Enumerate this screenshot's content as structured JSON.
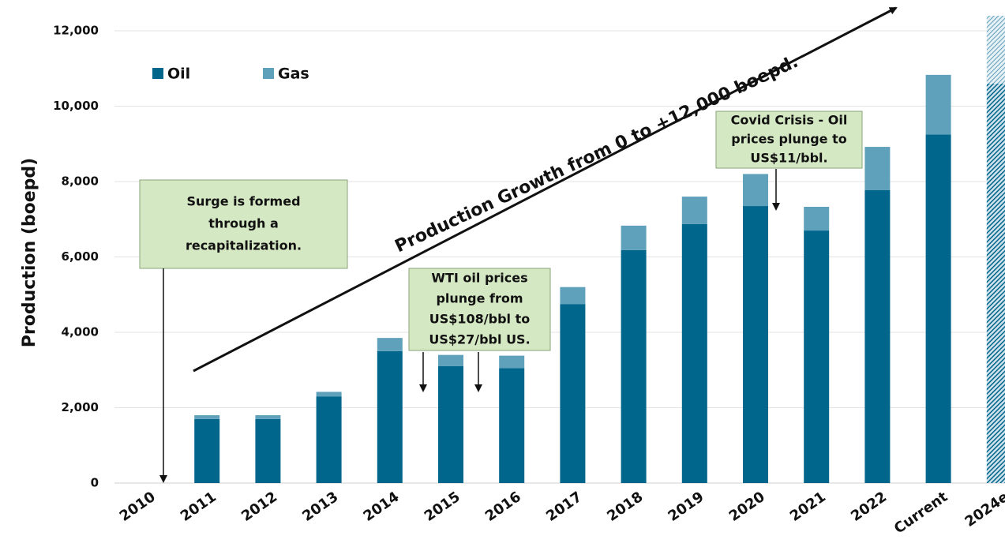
{
  "chart_data": {
    "type": "stacked_bar",
    "y_label": "Production (boepd)",
    "categories": [
      "2010",
      "2011",
      "2012",
      "2013",
      "2014",
      "2015",
      "2016",
      "2017",
      "2018",
      "2019",
      "2020",
      "2021",
      "2022",
      "Current",
      "2024e"
    ],
    "series": [
      {
        "name": "Oil",
        "color": "#00668c",
        "values": [
          0,
          1700,
          1700,
          2300,
          3500,
          3100,
          3050,
          4750,
          6180,
          6870,
          7350,
          6700,
          7770,
          9250,
          10600
        ]
      },
      {
        "name": "Gas",
        "color": "#5fa0bb",
        "values": [
          0,
          100,
          100,
          120,
          350,
          300,
          330,
          450,
          650,
          730,
          850,
          630,
          1150,
          1580,
          1800
        ]
      }
    ],
    "hatched": [
      false,
      false,
      false,
      false,
      false,
      false,
      false,
      false,
      false,
      false,
      false,
      false,
      false,
      false,
      true
    ],
    "ylim": [
      0,
      12000
    ],
    "yticks": [
      0,
      {
        "value": 2000,
        "label": "2,000"
      },
      {
        "value": 4000,
        "label": "4,000"
      },
      {
        "value": 6000,
        "label": "6,000"
      },
      {
        "value": 8000,
        "label": "8,000"
      },
      {
        "value": 10000,
        "label": "10,000"
      },
      {
        "value": 12000,
        "label": "12,000"
      }
    ],
    "grid": true,
    "growth_annotation": "Production Growth from 0 to +12,000 boepd.",
    "annotations": [
      {
        "lines": [
          "Surge is formed",
          "through a",
          "recapitalization."
        ]
      },
      {
        "lines": [
          "WTI oil prices",
          "plunge from",
          "US$108/bbl to",
          "US$27/bbl US."
        ]
      },
      {
        "lines": [
          "Covid Crisis - Oil",
          "prices plunge to",
          "US$11/bbl."
        ]
      }
    ]
  }
}
